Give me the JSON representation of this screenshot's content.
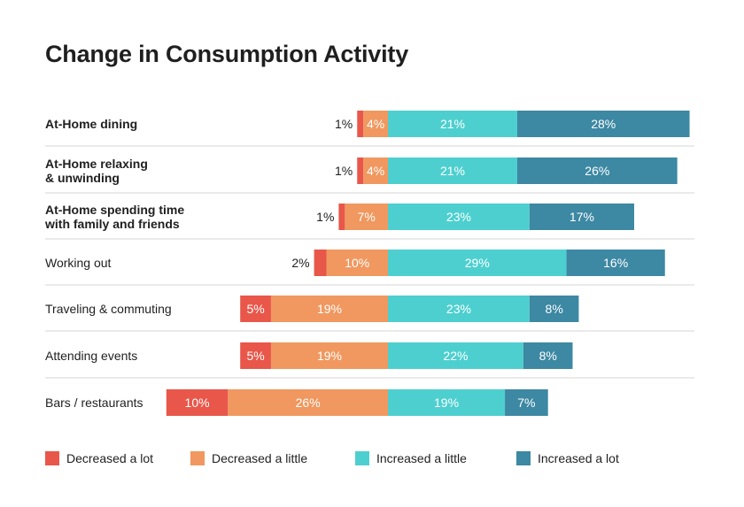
{
  "title": "Change in Consumption Activity",
  "chart_data": {
    "type": "bar",
    "orientation": "horizontal",
    "stacked": "diverging",
    "title": "Change in Consumption Activity",
    "categories": [
      [
        "At-Home dining"
      ],
      [
        "At-Home relaxing",
        "& unwinding"
      ],
      [
        "At-Home spending time",
        "with family and friends"
      ],
      [
        "Working out"
      ],
      [
        "Traveling & commuting"
      ],
      [
        "Attending events"
      ],
      [
        "Bars / restaurants"
      ]
    ],
    "bold_categories": [
      true,
      true,
      true,
      false,
      false,
      false,
      false
    ],
    "series": [
      {
        "name": "Decreased a lot",
        "color": "#e8574a",
        "side": "negative",
        "values": [
          1,
          1,
          1,
          2,
          5,
          5,
          10
        ]
      },
      {
        "name": "Decreased a little",
        "color": "#f0985f",
        "side": "negative",
        "values": [
          4,
          4,
          7,
          10,
          19,
          19,
          26
        ]
      },
      {
        "name": "Increased a little",
        "color": "#4ecfcf",
        "side": "positive",
        "values": [
          21,
          21,
          23,
          29,
          23,
          22,
          19
        ]
      },
      {
        "name": "Increased a lot",
        "color": "#3d88a3",
        "side": "positive",
        "values": [
          28,
          26,
          17,
          16,
          8,
          8,
          7
        ]
      }
    ],
    "value_suffix": "%",
    "grid": false,
    "legend_position": "bottom"
  }
}
